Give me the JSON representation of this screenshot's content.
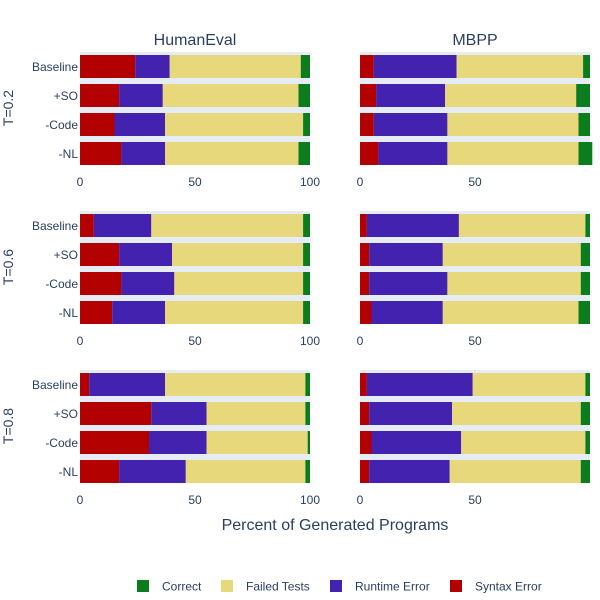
{
  "chart_data": {
    "type": "bar",
    "orientation": "horizontal",
    "stacked": true,
    "xlabel": "Percent of Generated Programs",
    "columns": [
      "HumanEval",
      "MBPP"
    ],
    "rows": [
      "T=0.2",
      "T=0.6",
      "T=0.8"
    ],
    "categories": [
      "Baseline",
      "+SO",
      "-Code",
      "-NL"
    ],
    "series_names": [
      "Syntax Error",
      "Runtime Error",
      "Failed Tests",
      "Correct"
    ],
    "colors": {
      "Syntax Error": "#b30000",
      "Runtime Error": "#4422b0",
      "Failed Tests": "#e8d87c",
      "Correct": "#0b7d1e",
      "panel_bg": "#e5ecf6",
      "axis_text": "#2a3f5f"
    },
    "legend": {
      "position": "bottom",
      "items": [
        "Correct",
        "Failed Tests",
        "Runtime Error",
        "Syntax Error"
      ]
    },
    "xlim": [
      0,
      100
    ],
    "xticks": {
      "HumanEval": [
        0,
        50,
        100
      ],
      "MBPP": [
        0,
        50
      ]
    },
    "panels": [
      {
        "row": "T=0.2",
        "col": "HumanEval",
        "bars": {
          "Baseline": [
            24,
            15,
            57,
            4
          ],
          "+SO": [
            17,
            19,
            59,
            5
          ],
          "-Code": [
            15,
            22,
            60,
            3
          ],
          "-NL": [
            18,
            19,
            58,
            5
          ]
        }
      },
      {
        "row": "T=0.2",
        "col": "MBPP",
        "bars": {
          "Baseline": [
            6,
            36,
            55,
            3
          ],
          "+SO": [
            7,
            30,
            57,
            6
          ],
          "-Code": [
            6,
            32,
            57,
            5
          ],
          "-NL": [
            8,
            30,
            57,
            6
          ]
        }
      },
      {
        "row": "T=0.6",
        "col": "HumanEval",
        "bars": {
          "Baseline": [
            6,
            25,
            66,
            3
          ],
          "+SO": [
            17,
            23,
            57,
            3
          ],
          "-Code": [
            18,
            23,
            56,
            3
          ],
          "-NL": [
            14,
            23,
            60,
            3
          ]
        }
      },
      {
        "row": "T=0.6",
        "col": "MBPP",
        "bars": {
          "Baseline": [
            3,
            40,
            55,
            2
          ],
          "+SO": [
            4,
            32,
            60,
            4
          ],
          "-Code": [
            4,
            34,
            58,
            4
          ],
          "-NL": [
            5,
            31,
            59,
            5
          ]
        }
      },
      {
        "row": "T=0.8",
        "col": "HumanEval",
        "bars": {
          "Baseline": [
            4,
            33,
            61,
            2
          ],
          "+SO": [
            31,
            24,
            43,
            2
          ],
          "-Code": [
            30,
            25,
            44,
            1
          ],
          "-NL": [
            17,
            29,
            52,
            2
          ]
        }
      },
      {
        "row": "T=0.8",
        "col": "MBPP",
        "bars": {
          "Baseline": [
            3,
            46,
            49,
            2
          ],
          "+SO": [
            4,
            36,
            56,
            4
          ],
          "-Code": [
            5,
            39,
            54,
            2
          ],
          "-NL": [
            4,
            35,
            57,
            4
          ]
        }
      }
    ]
  }
}
